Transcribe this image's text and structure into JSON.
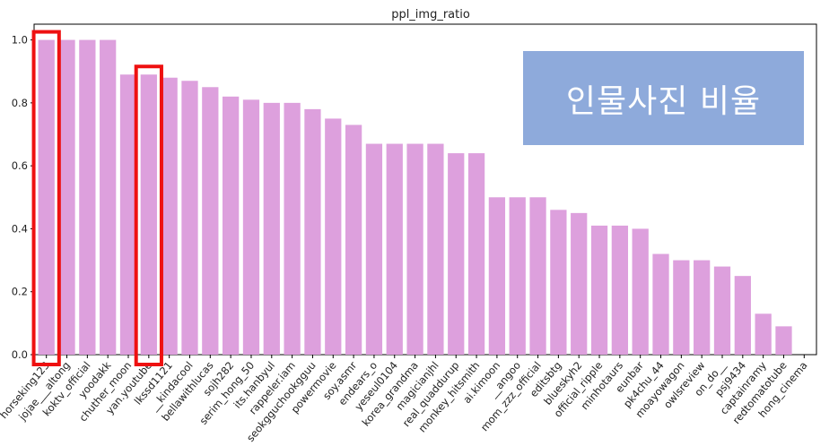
{
  "chart_data": {
    "type": "bar",
    "title": "ppl_img_ratio",
    "categories": [
      "horseking123",
      "jojae___altong",
      "koktv_official",
      "yoodakk",
      "chuther_moon",
      "yan.youtube",
      "lkssd1121",
      "__kindacool",
      "bellawithlucas",
      "sojh282",
      "serim_hong_50",
      "its.hanbyul",
      "rappeler.iam",
      "seokgguchookgguu",
      "powermovie",
      "soy.asmr",
      "endears_o",
      "yeseul0104",
      "korea_grandma",
      "magicianjhl",
      "real_quaddurup",
      "monkey_hitsmith",
      "ai.kimoon",
      "__angoo",
      "mom_zzz_official",
      "editsbtg",
      "blueskyh2",
      "official_ripple",
      "minhotaurs",
      "eunbar",
      "pk4chu_44",
      "moayowagon",
      "owlsreview",
      "on_do__",
      "psj9434",
      "captainramy",
      "redtomatotube",
      "hong_cinema"
    ],
    "values": [
      1.0,
      1.0,
      1.0,
      1.0,
      0.89,
      0.89,
      0.88,
      0.87,
      0.85,
      0.82,
      0.81,
      0.8,
      0.8,
      0.78,
      0.75,
      0.73,
      0.67,
      0.67,
      0.67,
      0.67,
      0.64,
      0.64,
      0.5,
      0.5,
      0.5,
      0.46,
      0.45,
      0.41,
      0.41,
      0.4,
      0.32,
      0.3,
      0.3,
      0.28,
      0.25,
      0.13,
      0.09,
      0.0
    ],
    "ylim": [
      0,
      1.0
    ],
    "yticks": [
      "0.0",
      "0.2",
      "0.4",
      "0.6",
      "0.8",
      "1.0"
    ],
    "bar_color": "#dda0dd",
    "highlighted_categories": [
      "horseking123",
      "yan.youtube"
    ],
    "highlight_color": "#ee1111"
  },
  "annotation": {
    "text": "인물사진 비율",
    "background": "#8eaadb"
  }
}
